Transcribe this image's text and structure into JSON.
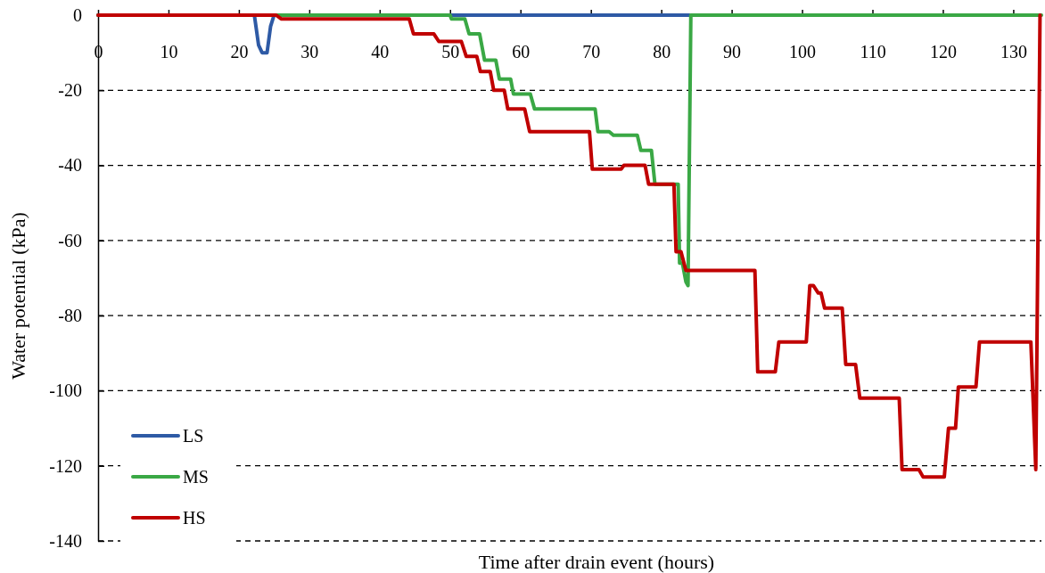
{
  "chart_data": {
    "type": "line",
    "xlabel": "Time after drain event (hours)",
    "ylabel": "Water potential (kPa)",
    "xlim": [
      0,
      134
    ],
    "xticks": [
      0,
      10,
      20,
      30,
      40,
      50,
      60,
      70,
      80,
      90,
      100,
      110,
      120,
      130
    ],
    "ylim": [
      -140,
      0
    ],
    "yticks": [
      -140,
      -120,
      -100,
      -80,
      -60,
      -40,
      -20,
      0
    ],
    "grid": "y",
    "legend": "bottom left",
    "line_style": "solid",
    "marker": "none",
    "series": [
      {
        "name": "LS",
        "color": "#2e5aa5",
        "x": [
          0,
          22.2,
          22.8,
          23.3,
          24,
          24.5,
          25,
          84
        ],
        "values": [
          0,
          0,
          -8,
          -10,
          -10,
          -3,
          0,
          0
        ]
      },
      {
        "name": "MS",
        "color": "#3aa845",
        "x": [
          0,
          50,
          50.2,
          52.1,
          52.7,
          54.2,
          54.9,
          56.5,
          57,
          58.6,
          59,
          61.4,
          62,
          70.6,
          71,
          72.6,
          73.2,
          76.6,
          77.1,
          78.6,
          79.1,
          82.4,
          82.6,
          83,
          83.5,
          83.8,
          84.2,
          134
        ],
        "values": [
          0,
          0,
          -1,
          -1,
          -5,
          -5,
          -12,
          -12,
          -17,
          -17,
          -21,
          -21,
          -25,
          -25,
          -31,
          -31,
          -32,
          -32,
          -36,
          -36,
          -45,
          -45,
          -66,
          -66,
          -71,
          -72,
          0,
          0
        ]
      },
      {
        "name": "HS",
        "color": "#c00000",
        "x": [
          0,
          25.3,
          26,
          44.2,
          44.8,
          47.7,
          48.4,
          51.6,
          52.3,
          53.8,
          54.3,
          55.7,
          56.2,
          57.7,
          58.2,
          60.6,
          61.3,
          69.8,
          70.2,
          74.3,
          74.7,
          77.7,
          78.2,
          81.8,
          82.1,
          82.8,
          83.5,
          93.3,
          93.7,
          96.2,
          96.7,
          100.6,
          101.1,
          101.6,
          102.3,
          102.7,
          103.2,
          105.7,
          106.2,
          107.6,
          108.2,
          113.8,
          114.2,
          116.6,
          117.2,
          120.2,
          120.8,
          121.8,
          122.2,
          124.7,
          125.2,
          132.5,
          133.2,
          133.8
        ],
        "values": [
          0,
          0,
          -1,
          -1,
          -5,
          -5,
          -7,
          -7,
          -11,
          -11,
          -15,
          -15,
          -20,
          -20,
          -25,
          -25,
          -31,
          -31,
          -41,
          -41,
          -40,
          -40,
          -45,
          -45,
          -63,
          -63,
          -68,
          -68,
          -95,
          -95,
          -87,
          -87,
          -72,
          -72,
          -74,
          -74,
          -78,
          -78,
          -93,
          -93,
          -102,
          -102,
          -121,
          -121,
          -123,
          -123,
          -110,
          -110,
          -99,
          -99,
          -87,
          -87,
          -121,
          0
        ]
      }
    ]
  }
}
